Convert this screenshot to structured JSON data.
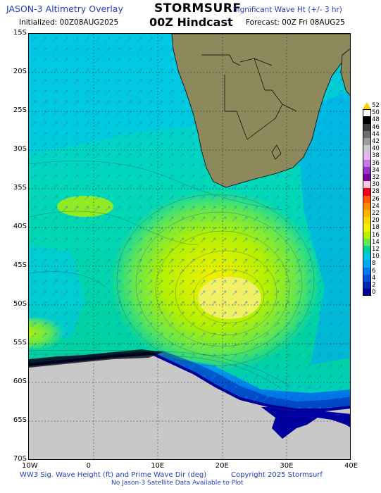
{
  "header": {
    "left_title": "JASON-3 Altimetry Overlay",
    "brand": "STORMSURF",
    "right_title": "Significant Wave Ht (+/- 3 hr)",
    "initialized": "Initialized: 00Z08AUG2025",
    "hindcast": "00Z Hindcast",
    "forecast": "Forecast: 00Z Fri 08AUG25"
  },
  "colors": {
    "title_blue": "#1f3fbf",
    "land": "#8c8a5c",
    "ice": "#c8c8c8",
    "dark_blue": "#0000a0"
  },
  "map": {
    "lat_labels": [
      "15S",
      "20S",
      "25S",
      "30S",
      "35S",
      "40S",
      "45S",
      "50S",
      "55S",
      "60S",
      "65S",
      "70S"
    ],
    "lon_labels": [
      "10W",
      "0",
      "10E",
      "20E",
      "30E",
      "40E"
    ]
  },
  "colorbar": {
    "labels": [
      "52",
      "50",
      "48",
      "46",
      "44",
      "42",
      "40",
      "38",
      "36",
      "34",
      "32",
      "30",
      "28",
      "26",
      "24",
      "22",
      "20",
      "18",
      "16",
      "14",
      "12",
      "10",
      "8",
      "6",
      "4",
      "2",
      "0"
    ],
    "colors": [
      "#f4d200",
      "#ffffff",
      "#000000",
      "#3c3c3c",
      "#6e6e6e",
      "#9c9c9c",
      "#c8c8c8",
      "#e6b4f0",
      "#c878e6",
      "#9632c8",
      "#7800a0",
      "#ffc8dc",
      "#f0001e",
      "#ff5a00",
      "#ff8c00",
      "#ffb400",
      "#ffd700",
      "#f0f000",
      "#b4f000",
      "#64e650",
      "#00d2a0",
      "#00c8e6",
      "#00aaf0",
      "#0078f0",
      "#0050dc",
      "#0028b4",
      "#000096"
    ]
  },
  "footer": {
    "caption": "WW3 Sig. Wave Height (ft) and Prime Wave Dir (deg)",
    "copyright": "Copyright 2025 Stormsurf",
    "note": "No Jason-3 Satellite Data Available to Plot"
  }
}
